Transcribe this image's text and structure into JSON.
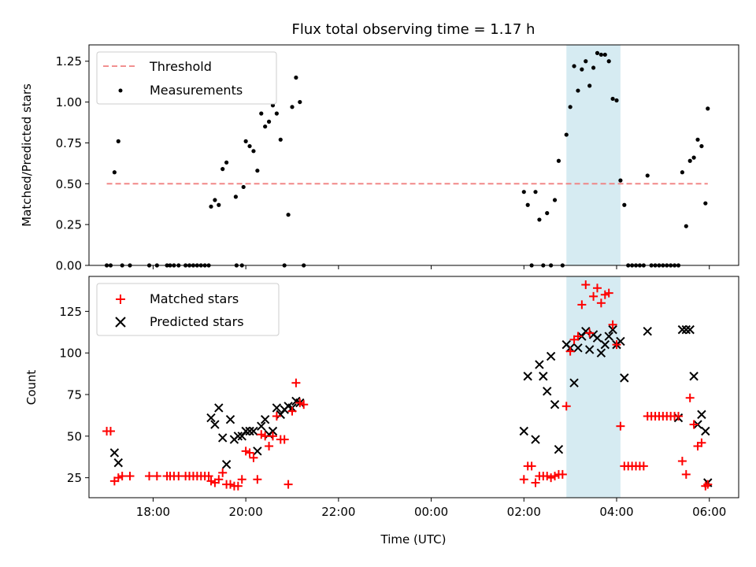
{
  "chart_data": [
    {
      "type": "scatter",
      "title": "Flux total observing time = 1.17 h",
      "xlabel": "",
      "ylabel": "Matched/Predicted stars",
      "xlim": [
        "16:37",
        "06:38"
      ],
      "ylim": [
        0,
        1.35
      ],
      "yticks": [
        0.0,
        0.25,
        0.5,
        0.75,
        1.0,
        1.25
      ],
      "ytick_labels": [
        "0.00",
        "0.25",
        "0.50",
        "0.75",
        "1.00",
        "1.25"
      ],
      "highlight_span": {
        "x": [
          "02:55",
          "04:05"
        ],
        "color": "#add8e6"
      },
      "legend": {
        "placement": "top-left",
        "entries": [
          "Threshold",
          "Measurements"
        ]
      },
      "series": [
        {
          "name": "Threshold",
          "style": "dashed-line",
          "color": "#f08080",
          "x": [
            "17:00",
            "05:58"
          ],
          "y": [
            0.5,
            0.5
          ]
        },
        {
          "name": "Measurements",
          "style": "dot",
          "color": "#000000",
          "points": [
            [
              "17:00",
              0.0
            ],
            [
              "17:05",
              0.0
            ],
            [
              "17:10",
              0.57
            ],
            [
              "17:15",
              0.76
            ],
            [
              "17:20",
              0.0
            ],
            [
              "17:30",
              0.0
            ],
            [
              "17:55",
              0.0
            ],
            [
              "18:05",
              0.0
            ],
            [
              "18:18",
              0.0
            ],
            [
              "18:22",
              0.0
            ],
            [
              "18:27",
              0.0
            ],
            [
              "18:33",
              0.0
            ],
            [
              "18:42",
              0.0
            ],
            [
              "18:47",
              0.0
            ],
            [
              "18:52",
              0.0
            ],
            [
              "18:57",
              0.0
            ],
            [
              "19:02",
              0.0
            ],
            [
              "19:07",
              0.0
            ],
            [
              "19:12",
              0.0
            ],
            [
              "19:15",
              0.36
            ],
            [
              "19:20",
              0.4
            ],
            [
              "19:25",
              0.37
            ],
            [
              "19:30",
              0.59
            ],
            [
              "19:35",
              0.63
            ],
            [
              "19:47",
              0.42
            ],
            [
              "19:48",
              0.0
            ],
            [
              "19:55",
              0.0
            ],
            [
              "19:57",
              0.48
            ],
            [
              "20:00",
              0.76
            ],
            [
              "20:05",
              0.73
            ],
            [
              "20:10",
              0.7
            ],
            [
              "20:15",
              0.58
            ],
            [
              "20:20",
              0.93
            ],
            [
              "20:25",
              0.85
            ],
            [
              "20:30",
              0.88
            ],
            [
              "20:35",
              0.98
            ],
            [
              "20:40",
              0.93
            ],
            [
              "20:45",
              0.77
            ],
            [
              "20:50",
              0.0
            ],
            [
              "20:55",
              0.31
            ],
            [
              "21:00",
              0.97
            ],
            [
              "21:05",
              1.15
            ],
            [
              "21:10",
              1.0
            ],
            [
              "21:15",
              0.0
            ],
            [
              "02:00",
              0.45
            ],
            [
              "02:05",
              0.37
            ],
            [
              "02:10",
              0.0
            ],
            [
              "02:15",
              0.45
            ],
            [
              "02:20",
              0.28
            ],
            [
              "02:25",
              0.0
            ],
            [
              "02:30",
              0.32
            ],
            [
              "02:35",
              0.0
            ],
            [
              "02:40",
              0.4
            ],
            [
              "02:45",
              0.64
            ],
            [
              "02:50",
              0.0
            ],
            [
              "02:55",
              0.8
            ],
            [
              "03:00",
              0.97
            ],
            [
              "03:05",
              1.22
            ],
            [
              "03:10",
              1.07
            ],
            [
              "03:15",
              1.2
            ],
            [
              "03:20",
              1.25
            ],
            [
              "03:25",
              1.1
            ],
            [
              "03:30",
              1.21
            ],
            [
              "03:35",
              1.3
            ],
            [
              "03:40",
              1.29
            ],
            [
              "03:45",
              1.29
            ],
            [
              "03:50",
              1.25
            ],
            [
              "03:55",
              1.02
            ],
            [
              "04:00",
              1.01
            ],
            [
              "04:05",
              0.52
            ],
            [
              "04:10",
              0.37
            ],
            [
              "04:15",
              0.0
            ],
            [
              "04:20",
              0.0
            ],
            [
              "04:25",
              0.0
            ],
            [
              "04:30",
              0.0
            ],
            [
              "04:35",
              0.0
            ],
            [
              "04:40",
              0.55
            ],
            [
              "04:45",
              0.0
            ],
            [
              "04:50",
              0.0
            ],
            [
              "04:55",
              0.0
            ],
            [
              "05:00",
              0.0
            ],
            [
              "05:05",
              0.0
            ],
            [
              "05:10",
              0.0
            ],
            [
              "05:15",
              0.0
            ],
            [
              "05:20",
              0.0
            ],
            [
              "05:25",
              0.57
            ],
            [
              "05:30",
              0.24
            ],
            [
              "05:35",
              0.64
            ],
            [
              "05:40",
              0.66
            ],
            [
              "05:45",
              0.77
            ],
            [
              "05:50",
              0.73
            ],
            [
              "05:55",
              0.38
            ],
            [
              "05:58",
              0.96
            ]
          ]
        }
      ]
    },
    {
      "type": "scatter",
      "title": "",
      "xlabel": "Time (UTC)",
      "ylabel": "Count",
      "xlim": [
        "16:37",
        "06:38"
      ],
      "ylim": [
        13,
        146
      ],
      "yticks": [
        25,
        50,
        75,
        100,
        125
      ],
      "ytick_labels": [
        "25",
        "50",
        "75",
        "100",
        "125"
      ],
      "xticks": [
        "18:00",
        "20:00",
        "22:00",
        "00:00",
        "02:00",
        "04:00",
        "06:00"
      ],
      "xtick_labels": [
        "18:00",
        "20:00",
        "22:00",
        "00:00",
        "02:00",
        "04:00",
        "06:00"
      ],
      "highlight_span": {
        "x": [
          "02:55",
          "04:05"
        ],
        "color": "#add8e6"
      },
      "legend": {
        "placement": "top-left",
        "entries": [
          "Matched stars",
          "Predicted stars"
        ]
      },
      "series": [
        {
          "name": "Matched stars",
          "marker": "plus",
          "color": "#ff0000",
          "points": [
            [
              "17:00",
              53
            ],
            [
              "17:05",
              53
            ],
            [
              "17:10",
              23
            ],
            [
              "17:15",
              25
            ],
            [
              "17:20",
              26
            ],
            [
              "17:30",
              26
            ],
            [
              "17:55",
              26
            ],
            [
              "18:05",
              26
            ],
            [
              "18:18",
              26
            ],
            [
              "18:22",
              26
            ],
            [
              "18:27",
              26
            ],
            [
              "18:33",
              26
            ],
            [
              "18:42",
              26
            ],
            [
              "18:47",
              26
            ],
            [
              "18:52",
              26
            ],
            [
              "18:57",
              26
            ],
            [
              "19:02",
              26
            ],
            [
              "19:07",
              26
            ],
            [
              "19:12",
              26
            ],
            [
              "19:15",
              23
            ],
            [
              "19:20",
              22
            ],
            [
              "19:25",
              24
            ],
            [
              "19:30",
              28
            ],
            [
              "19:35",
              21
            ],
            [
              "19:40",
              21
            ],
            [
              "19:45",
              20
            ],
            [
              "19:50",
              20
            ],
            [
              "19:55",
              24
            ],
            [
              "20:00",
              41
            ],
            [
              "20:05",
              40
            ],
            [
              "20:10",
              37
            ],
            [
              "20:15",
              24
            ],
            [
              "20:20",
              51
            ],
            [
              "20:25",
              50
            ],
            [
              "20:30",
              44
            ],
            [
              "20:35",
              50
            ],
            [
              "20:40",
              62
            ],
            [
              "20:45",
              48
            ],
            [
              "20:50",
              48
            ],
            [
              "20:55",
              21
            ],
            [
              "21:00",
              65
            ],
            [
              "21:05",
              82
            ],
            [
              "21:10",
              70
            ],
            [
              "21:15",
              69
            ],
            [
              "02:00",
              24
            ],
            [
              "02:05",
              32
            ],
            [
              "02:10",
              32
            ],
            [
              "02:15",
              22
            ],
            [
              "02:20",
              26
            ],
            [
              "02:25",
              26
            ],
            [
              "02:30",
              26
            ],
            [
              "02:35",
              25
            ],
            [
              "02:40",
              26
            ],
            [
              "02:45",
              27
            ],
            [
              "02:50",
              27
            ],
            [
              "02:55",
              68
            ],
            [
              "03:00",
              101
            ],
            [
              "03:05",
              108
            ],
            [
              "03:10",
              110
            ],
            [
              "03:15",
              129
            ],
            [
              "03:20",
              141
            ],
            [
              "03:25",
              112
            ],
            [
              "03:30",
              134
            ],
            [
              "03:35",
              139
            ],
            [
              "03:40",
              130
            ],
            [
              "03:45",
              135
            ],
            [
              "03:50",
              136
            ],
            [
              "03:55",
              117
            ],
            [
              "04:00",
              105
            ],
            [
              "04:05",
              56
            ],
            [
              "04:10",
              32
            ],
            [
              "04:15",
              32
            ],
            [
              "04:20",
              32
            ],
            [
              "04:25",
              32
            ],
            [
              "04:30",
              32
            ],
            [
              "04:35",
              32
            ],
            [
              "04:40",
              62
            ],
            [
              "04:45",
              62
            ],
            [
              "04:50",
              62
            ],
            [
              "04:55",
              62
            ],
            [
              "05:00",
              62
            ],
            [
              "05:05",
              62
            ],
            [
              "05:10",
              62
            ],
            [
              "05:15",
              62
            ],
            [
              "05:20",
              62
            ],
            [
              "05:25",
              35
            ],
            [
              "05:30",
              27
            ],
            [
              "05:35",
              73
            ],
            [
              "05:40",
              57
            ],
            [
              "05:45",
              44
            ],
            [
              "05:50",
              46
            ],
            [
              "05:55",
              20
            ],
            [
              "05:58",
              21
            ]
          ]
        },
        {
          "name": "Predicted stars",
          "marker": "x",
          "color": "#000000",
          "points": [
            [
              "17:10",
              40
            ],
            [
              "17:15",
              34
            ],
            [
              "19:15",
              61
            ],
            [
              "19:20",
              57
            ],
            [
              "19:25",
              67
            ],
            [
              "19:30",
              49
            ],
            [
              "19:35",
              33
            ],
            [
              "19:40",
              60
            ],
            [
              "19:45",
              48
            ],
            [
              "19:50",
              50
            ],
            [
              "19:55",
              50
            ],
            [
              "20:00",
              53
            ],
            [
              "20:05",
              53
            ],
            [
              "20:10",
              53
            ],
            [
              "20:15",
              41
            ],
            [
              "20:20",
              56
            ],
            [
              "20:25",
              60
            ],
            [
              "20:30",
              51
            ],
            [
              "20:35",
              53
            ],
            [
              "20:40",
              67
            ],
            [
              "20:45",
              63
            ],
            [
              "20:50",
              66
            ],
            [
              "20:55",
              68
            ],
            [
              "21:00",
              67
            ],
            [
              "21:05",
              71
            ],
            [
              "21:10",
              70
            ],
            [
              "02:00",
              53
            ],
            [
              "02:05",
              86
            ],
            [
              "02:15",
              48
            ],
            [
              "02:20",
              93
            ],
            [
              "02:25",
              86
            ],
            [
              "02:30",
              77
            ],
            [
              "02:35",
              98
            ],
            [
              "02:40",
              69
            ],
            [
              "02:45",
              42
            ],
            [
              "02:55",
              105
            ],
            [
              "03:00",
              103
            ],
            [
              "03:05",
              82
            ],
            [
              "03:10",
              103
            ],
            [
              "03:15",
              110
            ],
            [
              "03:20",
              113
            ],
            [
              "03:25",
              102
            ],
            [
              "03:30",
              111
            ],
            [
              "03:35",
              109
            ],
            [
              "03:40",
              100
            ],
            [
              "03:45",
              105
            ],
            [
              "03:50",
              110
            ],
            [
              "03:55",
              114
            ],
            [
              "04:00",
              105
            ],
            [
              "04:05",
              107
            ],
            [
              "04:10",
              85
            ],
            [
              "04:40",
              113
            ],
            [
              "05:20",
              61
            ],
            [
              "05:25",
              114
            ],
            [
              "05:30",
              114
            ],
            [
              "05:35",
              114
            ],
            [
              "05:40",
              86
            ],
            [
              "05:45",
              57
            ],
            [
              "05:50",
              63
            ],
            [
              "05:55",
              53
            ],
            [
              "05:58",
              22
            ]
          ]
        }
      ]
    }
  ]
}
